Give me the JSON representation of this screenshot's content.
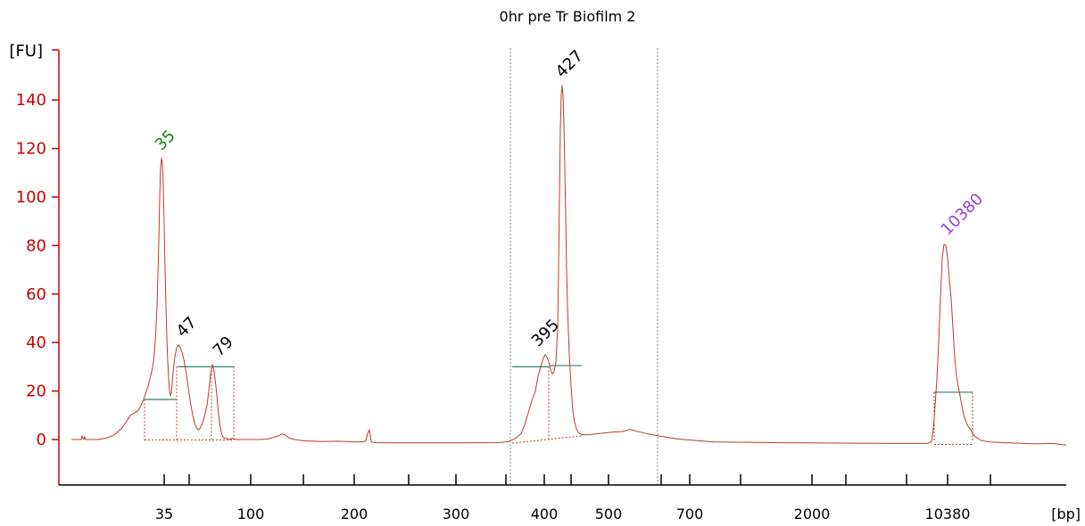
{
  "chart_data": {
    "type": "line",
    "title": "0hr pre Tr Biofilm 2",
    "ylabel": "[FU]",
    "xlabel": "[bp]",
    "ylim": [
      -18,
      161
    ],
    "yticks": [
      0,
      20,
      40,
      60,
      80,
      100,
      120,
      140
    ],
    "x_tick_labels": [
      "35",
      "100",
      "200",
      "300",
      "400",
      "500",
      "700",
      "2000",
      "10380"
    ],
    "peaks": [
      {
        "label": "35",
        "value": 116,
        "color": "#1a7f1a"
      },
      {
        "label": "47",
        "value": 39,
        "color": "#000000"
      },
      {
        "label": "79",
        "value": 31,
        "color": "#000000"
      },
      {
        "label": "395",
        "value": 35,
        "color": "#000000"
      },
      {
        "label": "427",
        "value": 146,
        "color": "#000000"
      },
      {
        "label": "10380",
        "value": 81,
        "color": "#9b3fe0"
      }
    ],
    "trace_color": "#c0392b",
    "axis_color": "#cc0000",
    "baseline_color": "#2e7d6b",
    "series": [
      {
        "x": [
          80,
          91,
          92,
          93,
          94,
          95,
          96,
          110,
          118,
          122,
          126,
          130,
          136,
          141,
          146,
          151,
          155,
          158,
          161,
          164,
          166,
          168,
          170,
          172,
          174,
          176,
          178,
          179,
          180,
          181,
          182,
          183,
          184,
          185,
          186,
          187,
          188,
          189,
          190,
          191,
          192,
          193,
          194,
          196,
          198,
          200,
          202,
          204,
          206,
          208,
          210,
          212,
          214,
          216,
          218,
          220,
          222,
          224,
          226,
          228,
          230,
          232,
          234,
          236,
          238,
          240,
          242,
          244,
          246,
          248,
          250,
          252,
          254,
          256,
          258,
          260,
          262,
          265,
          270,
          280,
          290,
          300,
          312,
          316,
          320,
          324,
          330,
          340,
          360,
          380,
          400,
          408,
          410,
          412,
          414,
          416,
          418,
          420,
          440,
          480,
          520,
          560,
          570,
          578,
          584,
          588,
          592,
          596,
          600,
          603,
          606,
          609,
          611,
          613,
          615,
          617,
          619,
          621,
          623,
          625,
          626,
          627,
          628,
          629,
          630,
          631,
          632,
          633,
          634,
          635,
          636,
          638,
          640,
          642,
          644,
          646,
          648,
          652,
          660,
          672,
          686,
          698,
          706,
          714,
          724,
          738,
          760,
          800,
          900,
          1000,
          1030,
          1040,
          1044,
          1046,
          1048,
          1050,
          1052,
          1054,
          1056,
          1058,
          1060,
          1062,
          1064,
          1066,
          1068,
          1070,
          1072,
          1074,
          1076,
          1078,
          1080,
          1082,
          1084,
          1086,
          1088,
          1090,
          1092,
          1094,
          1096,
          1100,
          1110,
          1120,
          1140,
          1160,
          1180,
          1195
        ],
        "values": [
          0,
          0,
          1.5,
          0.5,
          0,
          1.2,
          0,
          0,
          0.5,
          1,
          1.5,
          2.5,
          4.5,
          7,
          10,
          11,
          12,
          14,
          16.5,
          20,
          22,
          25,
          28,
          32,
          40,
          55,
          82,
          100,
          112,
          116,
          114,
          105,
          88,
          70,
          55,
          42,
          32,
          25,
          20,
          18,
          19,
          23,
          28,
          34,
          38,
          39,
          38,
          36,
          33,
          29,
          24,
          19,
          14,
          10,
          7,
          5,
          4,
          4.5,
          6,
          8,
          11,
          14,
          20,
          27,
          31,
          28,
          22,
          14,
          7,
          3,
          1,
          0.5,
          0.5,
          0.3,
          0,
          0.5,
          0.2,
          0,
          0,
          0,
          0,
          0.2,
          1.5,
          2.3,
          1.8,
          0.6,
          0,
          -0.5,
          -0.8,
          -0.7,
          -1.0,
          -0.9,
          -0.4,
          2.5,
          4,
          -0.9,
          -1.2,
          -1.3,
          -1.4,
          -1.4,
          -1.4,
          -1.3,
          -0.8,
          0.5,
          2.5,
          6,
          11,
          16,
          20,
          26,
          30,
          33.5,
          35,
          34,
          32,
          29,
          27,
          28,
          32,
          46,
          70,
          100,
          128,
          142,
          146,
          142,
          130,
          112,
          92,
          70,
          55,
          35,
          22,
          12,
          7,
          4.5,
          3,
          2,
          2,
          2.5,
          3,
          3.3,
          4.2,
          3.4,
          2.5,
          1.5,
          0.2,
          -1.0,
          -1.4,
          -1.6,
          -1.6,
          -1.6,
          -0.8,
          4,
          14,
          25,
          40,
          58,
          75,
          80.5,
          80,
          75,
          66,
          58,
          46,
          34,
          26,
          22,
          18,
          14,
          10,
          8,
          6,
          5,
          4,
          2.5,
          1.5,
          1,
          0.5,
          -0.5,
          -1,
          -1.2,
          -1.5,
          -1.8,
          -1.6,
          -2.3
        ]
      }
    ]
  }
}
